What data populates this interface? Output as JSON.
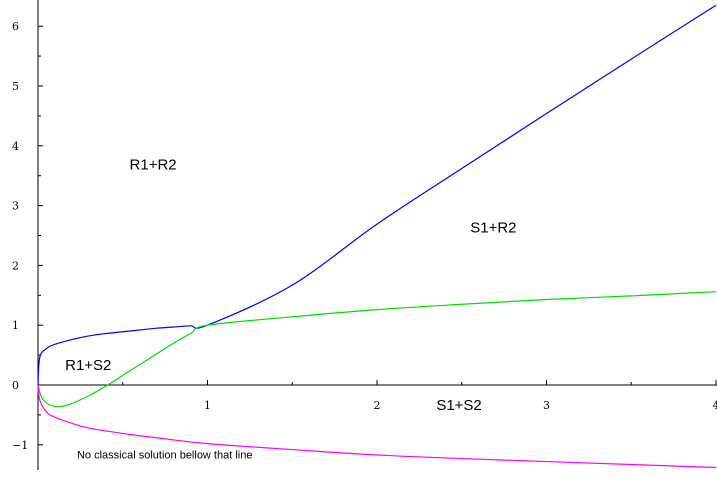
{
  "chart_data": {
    "type": "line",
    "title": "",
    "xlabel": "",
    "ylabel": "",
    "xlim": [
      0,
      4
    ],
    "ylim": [
      -1.4,
      6.5
    ],
    "grid": false,
    "x_ticks": [
      1,
      2,
      3,
      4
    ],
    "x_tick_labels": [
      "1",
      "2",
      "3",
      "4"
    ],
    "y_ticks": [
      -1,
      0,
      1,
      2,
      3,
      4,
      5,
      6
    ],
    "y_tick_labels": [
      "-1",
      "0",
      "1",
      "2",
      "3",
      "4",
      "5",
      "6"
    ],
    "series": [
      {
        "color": "#0000ff",
        "x": [
          0,
          0.01,
          0.05,
          0.1,
          0.2,
          0.3,
          0.4,
          0.5,
          0.6,
          0.7,
          0.8,
          0.9,
          1,
          1.5,
          2,
          2.5,
          3,
          3.5,
          4
        ],
        "y": [
          0,
          0.46,
          0.61,
          0.68,
          0.76,
          0.82,
          0.86,
          0.89,
          0.92,
          0.95,
          0.97,
          0.99,
          1,
          1.67,
          2.69,
          3.62,
          4.54,
          5.45,
          6.35
        ]
      },
      {
        "color": "#00dd00",
        "x": [
          0,
          0.02,
          0.05,
          0.1,
          0.15,
          0.2,
          0.3,
          0.4,
          0.5,
          0.6,
          0.7,
          0.8,
          0.9,
          1,
          1.5,
          2,
          2.5,
          3,
          3.5,
          4
        ],
        "y": [
          0,
          -0.2,
          -0.3,
          -0.36,
          -0.35,
          -0.31,
          -0.18,
          -0.02,
          0.16,
          0.34,
          0.52,
          0.7,
          0.86,
          1,
          1.14,
          1.26,
          1.35,
          1.43,
          1.49,
          1.56
        ]
      },
      {
        "color": "#ff00ff",
        "x": [
          0,
          0.01,
          0.05,
          0.1,
          0.2,
          0.3,
          0.5,
          0.75,
          1,
          1.5,
          2,
          2.5,
          3,
          3.5,
          4
        ],
        "y": [
          0,
          -0.25,
          -0.45,
          -0.54,
          -0.64,
          -0.72,
          -0.81,
          -0.9,
          -0.98,
          -1.08,
          -1.17,
          -1.23,
          -1.28,
          -1.33,
          -1.38
        ]
      }
    ],
    "annotations": [
      {
        "text": "R1+R2",
        "x": 0.54,
        "y": 3.6
      },
      {
        "text": "S1+R2",
        "x": 2.55,
        "y": 2.55
      },
      {
        "text": "R1+S2",
        "x": 0.16,
        "y": 0.25
      },
      {
        "text": "S1+S2",
        "x": 2.35,
        "y": -0.42
      },
      {
        "text": "No classical solution bellow that line",
        "x": 0.23,
        "y": -1.23
      }
    ]
  }
}
